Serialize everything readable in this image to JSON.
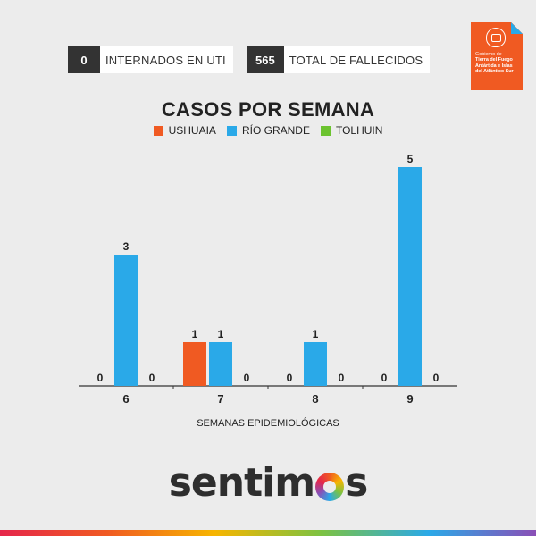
{
  "stats": [
    {
      "value": "0",
      "label": "INTERNADOS EN UTI"
    },
    {
      "value": "565",
      "label": "TOTAL DE FALLECIDOS"
    }
  ],
  "logo": {
    "line1": "Gobierno de",
    "line2": "Tierra del Fuego",
    "line3": "Antártida e Islas",
    "line4": "del Atlántico Sur"
  },
  "brand": {
    "pre": "sentim",
    "post": "s"
  },
  "colors": {
    "ushuaia": "#f05a22",
    "rio_grande": "#2aa9e8",
    "tolhuin": "#6cc330",
    "axis": "#333333",
    "background": "#ececec"
  },
  "chart_data": {
    "type": "bar",
    "title": "CASOS POR SEMANA",
    "xlabel": "SEMANAS EPIDEMIOLÓGICAS",
    "ylabel": "",
    "categories": [
      "6",
      "7",
      "8",
      "9"
    ],
    "series": [
      {
        "name": "USHUAIA",
        "values": [
          0,
          1,
          0,
          0
        ]
      },
      {
        "name": "RÍO GRANDE",
        "values": [
          3,
          1,
          1,
          5
        ]
      },
      {
        "name": "TOLHUIN",
        "values": [
          0,
          0,
          0,
          0
        ]
      }
    ],
    "ylim": [
      0,
      5
    ],
    "legend": "top-center",
    "grid": false
  }
}
